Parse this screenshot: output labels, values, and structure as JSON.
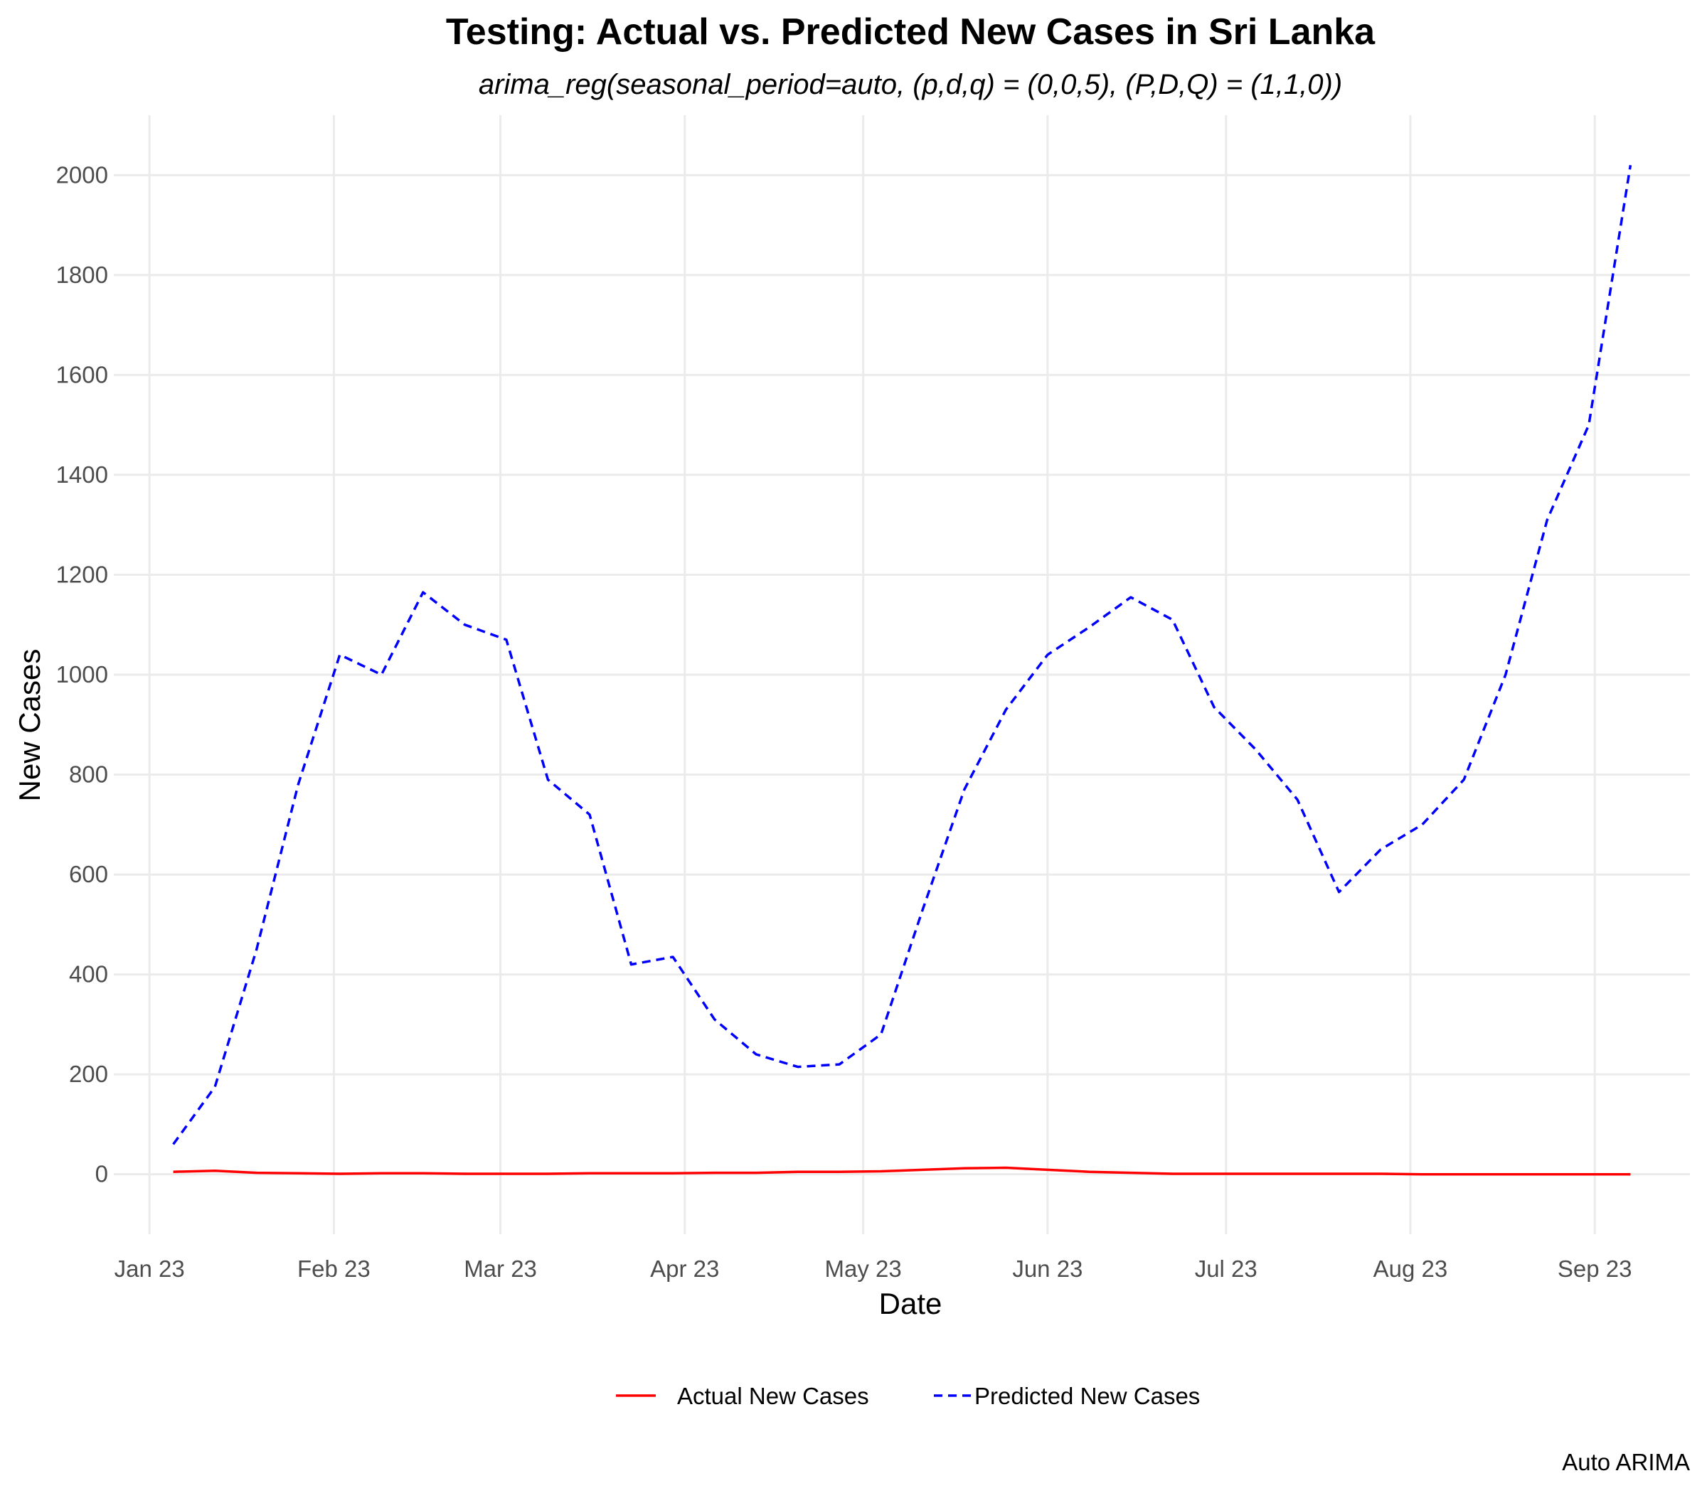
{
  "chart_data": {
    "type": "line",
    "title": "Testing: Actual vs. Predicted New Cases in Sri Lanka",
    "subtitle": "arima_reg(seasonal_period=auto, (p,d,q) = (0,0,5), (P,D,Q) = (1,1,0))",
    "xlabel": "Date",
    "ylabel": "New Cases",
    "caption": "Auto ARIMA",
    "xlim": [
      "2022-12-26",
      "2023-09-17"
    ],
    "ylim": [
      -120,
      2120
    ],
    "x_ticks": [
      {
        "date": "2023-01-01",
        "label": "Jan 23"
      },
      {
        "date": "2023-02-01",
        "label": "Feb 23"
      },
      {
        "date": "2023-03-01",
        "label": "Mar 23"
      },
      {
        "date": "2023-04-01",
        "label": "Apr 23"
      },
      {
        "date": "2023-05-01",
        "label": "May 23"
      },
      {
        "date": "2023-06-01",
        "label": "Jun 23"
      },
      {
        "date": "2023-07-01",
        "label": "Jul 23"
      },
      {
        "date": "2023-08-01",
        "label": "Aug 23"
      },
      {
        "date": "2023-09-01",
        "label": "Sep 23"
      }
    ],
    "y_ticks": [
      0,
      200,
      400,
      600,
      800,
      1000,
      1200,
      1400,
      1600,
      1800,
      2000
    ],
    "grid": true,
    "legend_position": "bottom",
    "x": [
      "2023-01-05",
      "2023-01-12",
      "2023-01-19",
      "2023-01-26",
      "2023-02-02",
      "2023-02-09",
      "2023-02-16",
      "2023-02-23",
      "2023-03-02",
      "2023-03-09",
      "2023-03-16",
      "2023-03-23",
      "2023-03-30",
      "2023-04-06",
      "2023-04-13",
      "2023-04-20",
      "2023-04-27",
      "2023-05-04",
      "2023-05-11",
      "2023-05-18",
      "2023-05-25",
      "2023-06-01",
      "2023-06-08",
      "2023-06-15",
      "2023-06-22",
      "2023-06-29",
      "2023-07-06",
      "2023-07-13",
      "2023-07-20",
      "2023-07-27",
      "2023-08-03",
      "2023-08-10",
      "2023-08-17",
      "2023-08-24",
      "2023-08-31",
      "2023-09-07"
    ],
    "series": [
      {
        "name": "Actual New Cases",
        "color": "#ff0000",
        "style": "solid",
        "values": [
          5,
          7,
          3,
          2,
          1,
          2,
          2,
          1,
          1,
          1,
          2,
          2,
          2,
          3,
          3,
          5,
          5,
          6,
          9,
          12,
          13,
          9,
          5,
          3,
          1,
          1,
          1,
          1,
          1,
          1,
          0,
          0,
          0,
          0,
          0,
          0
        ]
      },
      {
        "name": "Predicted New Cases",
        "color": "#0000ff",
        "style": "dashed",
        "values": [
          60,
          175,
          450,
          780,
          1040,
          1000,
          1165,
          1100,
          1070,
          790,
          720,
          420,
          435,
          310,
          240,
          215,
          220,
          280,
          530,
          770,
          930,
          1040,
          1095,
          1155,
          1110,
          935,
          850,
          750,
          565,
          650,
          700,
          790,
          1000,
          1310,
          1500,
          2020
        ]
      }
    ]
  }
}
